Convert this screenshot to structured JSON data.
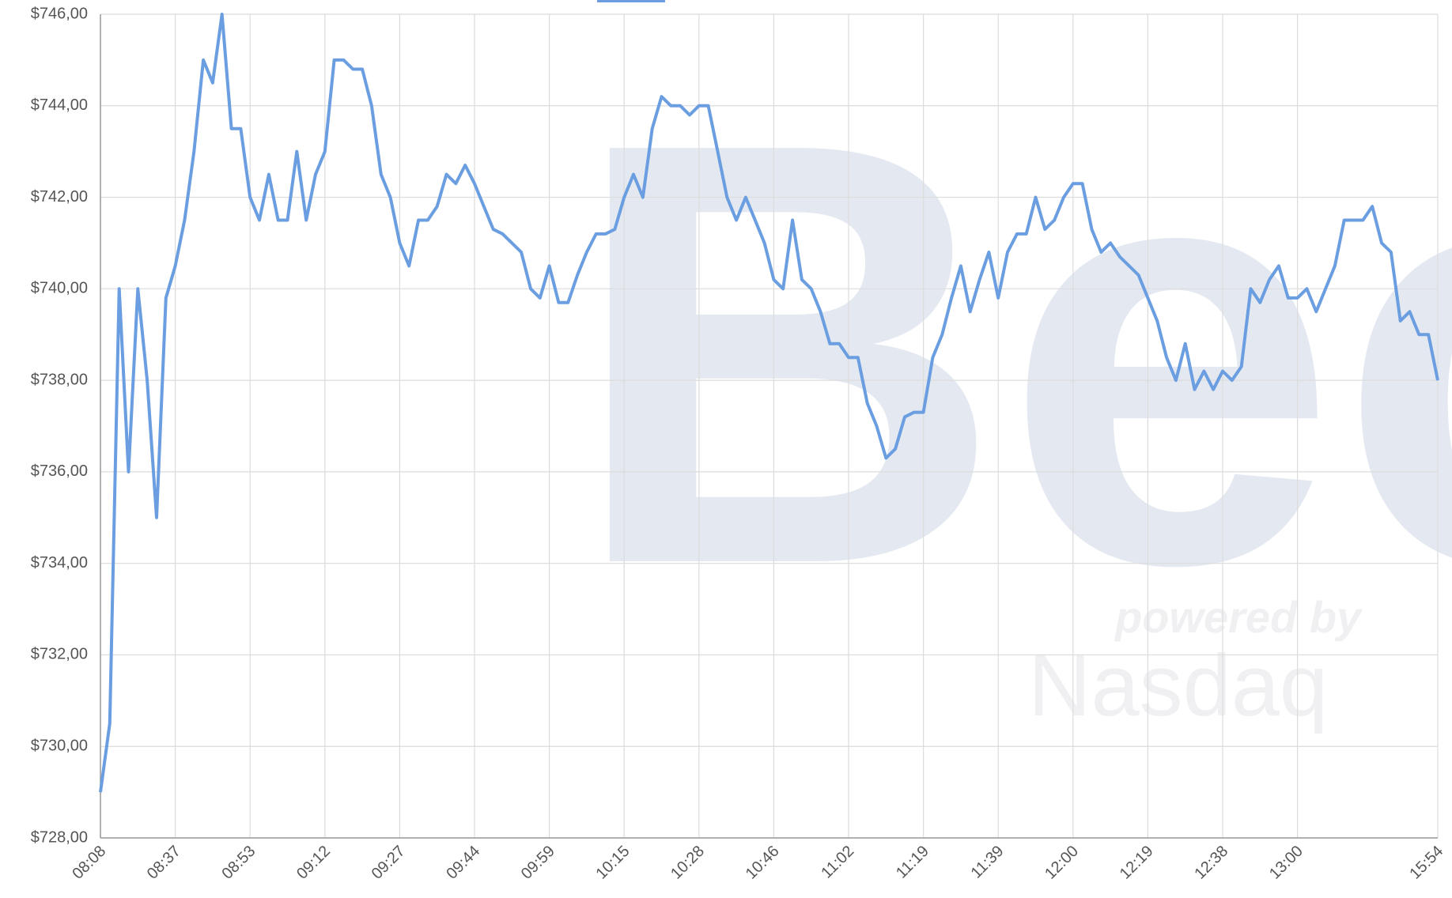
{
  "chart_data": {
    "type": "line",
    "watermark": [
      "Bec",
      "powered by",
      "Nasdaq"
    ],
    "categories": [
      "08:08",
      null,
      null,
      null,
      null,
      null,
      null,
      null,
      "08:37",
      null,
      null,
      null,
      null,
      null,
      null,
      null,
      "08:53",
      null,
      null,
      null,
      null,
      null,
      null,
      null,
      "09:12",
      null,
      null,
      null,
      null,
      null,
      null,
      null,
      "09:27",
      null,
      null,
      null,
      null,
      null,
      null,
      null,
      "09:44",
      null,
      null,
      null,
      null,
      null,
      null,
      null,
      "09:59",
      null,
      null,
      null,
      null,
      null,
      null,
      null,
      "10:15",
      null,
      null,
      null,
      null,
      null,
      null,
      null,
      "10:28",
      null,
      null,
      null,
      null,
      null,
      null,
      null,
      "10:46",
      null,
      null,
      null,
      null,
      null,
      null,
      null,
      "11:02",
      null,
      null,
      null,
      null,
      null,
      null,
      null,
      "11:19",
      null,
      null,
      null,
      null,
      null,
      null,
      null,
      "11:39",
      null,
      null,
      null,
      null,
      null,
      null,
      null,
      "12:00",
      null,
      null,
      null,
      null,
      null,
      null,
      null,
      "12:19",
      null,
      null,
      null,
      null,
      null,
      null,
      null,
      "12:38",
      null,
      null,
      null,
      null,
      null,
      null,
      null,
      "13:00",
      null,
      null,
      null,
      null,
      null,
      null,
      null,
      null,
      null,
      null,
      null,
      null,
      null,
      null,
      "15:54"
    ],
    "series": [
      {
        "color": "#6a9ee0",
        "values": [
          729,
          730.5,
          740,
          736,
          740,
          738,
          735,
          739.8,
          740.5,
          741.5,
          743,
          745,
          744.5,
          746,
          743.5,
          743.5,
          742,
          741.5,
          742.5,
          741.5,
          741.5,
          743,
          741.5,
          742.5,
          743,
          745,
          745,
          744.8,
          744.8,
          744,
          742.5,
          742,
          741,
          740.5,
          741.5,
          741.5,
          741.8,
          742.5,
          742.3,
          742.7,
          742.3,
          741.8,
          741.3,
          741.2,
          741,
          740.8,
          740,
          739.8,
          740.5,
          739.7,
          739.7,
          740.3,
          740.8,
          741.2,
          741.2,
          741.3,
          742,
          742.5,
          742,
          743.5,
          744.2,
          744,
          744,
          743.8,
          744,
          744,
          743,
          742,
          741.5,
          742,
          741.5,
          741,
          740.2,
          740,
          741.5,
          740.2,
          740,
          739.5,
          738.8,
          738.8,
          738.5,
          738.5,
          737.5,
          737,
          736.3,
          736.5,
          737.2,
          737.3,
          737.3,
          738.5,
          739,
          739.8,
          740.5,
          739.5,
          740.2,
          740.8,
          739.8,
          740.8,
          741.2,
          741.2,
          742,
          741.3,
          741.5,
          742,
          742.3,
          742.3,
          741.3,
          740.8,
          741,
          740.7,
          740.5,
          740.3,
          739.8,
          739.3,
          738.5,
          738,
          738.8,
          737.8,
          738.2,
          737.8,
          738.2,
          738,
          738.3,
          740,
          739.7,
          740.2,
          740.5,
          739.8,
          739.8,
          740,
          739.5,
          740,
          740.5,
          741.5,
          741.5,
          741.5,
          741.8,
          741,
          740.8,
          739.3,
          739.5,
          739,
          739,
          738
        ]
      }
    ],
    "ylim": [
      728,
      746
    ],
    "yticks": [
      {
        "value": 728,
        "label": "$728,00"
      },
      {
        "value": 730,
        "label": "$730,00"
      },
      {
        "value": 732,
        "label": "$732,00"
      },
      {
        "value": 734,
        "label": "$734,00"
      },
      {
        "value": 736,
        "label": "$736,00"
      },
      {
        "value": 738,
        "label": "$738,00"
      },
      {
        "value": 740,
        "label": "$740,00"
      },
      {
        "value": 742,
        "label": "$742,00"
      },
      {
        "value": 744,
        "label": "$744,00"
      },
      {
        "value": 746,
        "label": "$746,00"
      }
    ],
    "grid": true
  }
}
